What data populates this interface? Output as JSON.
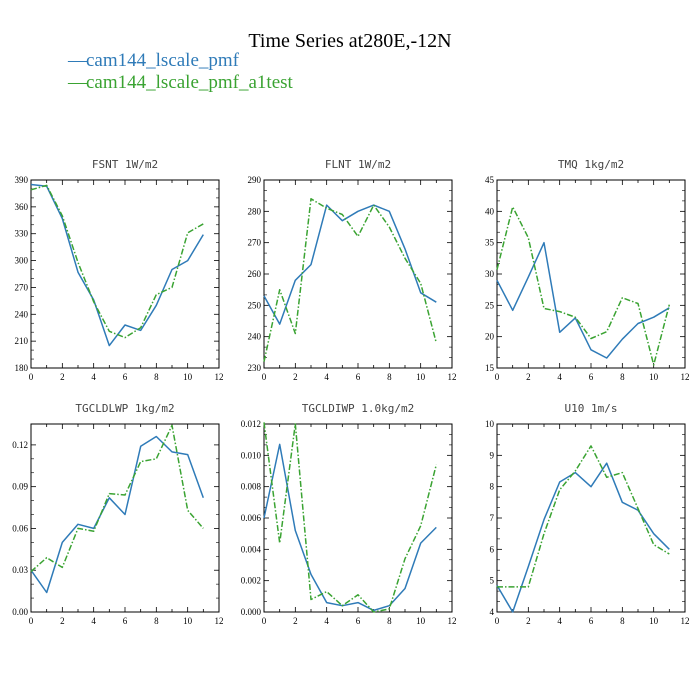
{
  "title": "Time Series at280E,-12N",
  "legend": [
    {
      "dash": "—",
      "label": "cam144_lscale_pmf",
      "color": "#2f7bb8"
    },
    {
      "dash": "—",
      "label": "cam144_lscale_pmf_a1test",
      "color": "#3aa332"
    }
  ],
  "colors": {
    "series1": "#2f7bb8",
    "series2": "#3aa332"
  },
  "chart_data": [
    {
      "type": "line",
      "title": "FSNT   1W/m2",
      "xlim": [
        0,
        12
      ],
      "xticks": [
        0,
        2,
        4,
        6,
        8,
        10,
        12
      ],
      "ylim": [
        180,
        390
      ],
      "yticks": [
        180,
        210,
        240,
        270,
        300,
        330,
        360,
        390
      ],
      "x": [
        0,
        1,
        2,
        3,
        4,
        5,
        6,
        7,
        8,
        9,
        10,
        11
      ],
      "series": [
        {
          "name": "cam144_lscale_pmf",
          "values": [
            385,
            383,
            347,
            287,
            256,
            205,
            228,
            222,
            250,
            290,
            300,
            329
          ]
        },
        {
          "name": "cam144_lscale_pmf_a1test",
          "values": [
            379,
            384,
            350,
            298,
            254,
            221,
            214,
            225,
            262,
            270,
            331,
            341
          ]
        }
      ]
    },
    {
      "type": "line",
      "title": "FLNT   1W/m2",
      "xlim": [
        0,
        12
      ],
      "xticks": [
        0,
        2,
        4,
        6,
        8,
        10,
        12
      ],
      "ylim": [
        230,
        290
      ],
      "yticks": [
        230,
        240,
        250,
        260,
        270,
        280,
        290
      ],
      "x": [
        0,
        1,
        2,
        3,
        4,
        5,
        6,
        7,
        8,
        9,
        10,
        11
      ],
      "series": [
        {
          "name": "cam144_lscale_pmf",
          "values": [
            253,
            244,
            258,
            263,
            282,
            277,
            280,
            282,
            280,
            268,
            254,
            251
          ]
        },
        {
          "name": "cam144_lscale_pmf_a1test",
          "values": [
            232,
            255,
            241,
            284,
            281,
            279,
            272,
            282,
            275,
            265,
            257,
            238
          ]
        }
      ]
    },
    {
      "type": "line",
      "title": "TMQ   1kg/m2",
      "xlim": [
        0,
        12
      ],
      "xticks": [
        0,
        2,
        4,
        6,
        8,
        10,
        12
      ],
      "ylim": [
        15,
        45
      ],
      "yticks": [
        15,
        20,
        25,
        30,
        35,
        40,
        45
      ],
      "x": [
        0,
        1,
        2,
        3,
        4,
        5,
        6,
        7,
        8,
        9,
        10,
        11
      ],
      "series": [
        {
          "name": "cam144_lscale_pmf",
          "values": [
            29,
            24.2,
            29.5,
            35,
            20.7,
            23,
            17.9,
            16.6,
            19.6,
            22.1,
            23.1,
            24.6
          ]
        },
        {
          "name": "cam144_lscale_pmf_a1test",
          "values": [
            30.7,
            40.7,
            35.8,
            24.5,
            24,
            23.1,
            19.7,
            20.8,
            26.2,
            25.3,
            15.5,
            25.1
          ]
        }
      ]
    },
    {
      "type": "line",
      "title": "TGCLDLWP   1kg/m2",
      "xlim": [
        0,
        12
      ],
      "xticks": [
        0,
        2,
        4,
        6,
        8,
        10,
        12
      ],
      "ylim": [
        0,
        0.135
      ],
      "yticks": [
        0,
        0.03,
        0.06,
        0.09,
        0.12
      ],
      "ytick_labels": [
        "0.00",
        "0.03",
        "0.06",
        "0.09",
        "0.12"
      ],
      "x": [
        0,
        1,
        2,
        3,
        4,
        5,
        6,
        7,
        8,
        9,
        10,
        11
      ],
      "series": [
        {
          "name": "cam144_lscale_pmf",
          "values": [
            0.03,
            0.014,
            0.05,
            0.063,
            0.06,
            0.082,
            0.07,
            0.119,
            0.126,
            0.115,
            0.113,
            0.082
          ]
        },
        {
          "name": "cam144_lscale_pmf_a1test",
          "values": [
            0.029,
            0.039,
            0.032,
            0.06,
            0.058,
            0.085,
            0.084,
            0.108,
            0.11,
            0.134,
            0.073,
            0.06
          ]
        }
      ]
    },
    {
      "type": "line",
      "title": "TGCLDIWP   1.0kg/m2",
      "xlim": [
        0,
        12
      ],
      "xticks": [
        0,
        2,
        4,
        6,
        8,
        10,
        12
      ],
      "ylim": [
        0,
        0.012
      ],
      "yticks": [
        0,
        0.002,
        0.004,
        0.006,
        0.008,
        0.01,
        0.012
      ],
      "ytick_labels": [
        "0.000",
        "0.002",
        "0.004",
        "0.006",
        "0.008",
        "0.010",
        "0.012"
      ],
      "x": [
        0,
        1,
        2,
        3,
        4,
        5,
        6,
        7,
        8,
        9,
        10,
        11
      ],
      "series": [
        {
          "name": "cam144_lscale_pmf",
          "values": [
            0.006,
            0.0107,
            0.0052,
            0.0024,
            0.0006,
            0.0004,
            0.0006,
            0.0001,
            0.0004,
            0.0015,
            0.0044,
            0.0054
          ]
        },
        {
          "name": "cam144_lscale_pmf_a1test",
          "values": [
            0.0121,
            0.0044,
            0.012,
            0.0008,
            0.0013,
            0.0004,
            0.0011,
            0.0,
            0.0002,
            0.0034,
            0.0055,
            0.0094
          ]
        }
      ]
    },
    {
      "type": "line",
      "title": "U10   1m/s",
      "xlim": [
        0,
        12
      ],
      "xticks": [
        0,
        2,
        4,
        6,
        8,
        10,
        12
      ],
      "ylim": [
        4,
        10
      ],
      "yticks": [
        4,
        5,
        6,
        7,
        8,
        9,
        10
      ],
      "x": [
        0,
        1,
        2,
        3,
        4,
        5,
        6,
        7,
        8,
        9,
        10,
        11
      ],
      "series": [
        {
          "name": "cam144_lscale_pmf",
          "values": [
            4.85,
            4.0,
            5.45,
            6.95,
            8.15,
            8.45,
            8.0,
            8.75,
            7.5,
            7.25,
            6.5,
            6.0
          ]
        },
        {
          "name": "cam144_lscale_pmf_a1test",
          "values": [
            4.8,
            4.8,
            4.8,
            6.5,
            7.9,
            8.5,
            9.3,
            8.3,
            8.45,
            7.3,
            6.15,
            5.85
          ]
        }
      ]
    }
  ]
}
